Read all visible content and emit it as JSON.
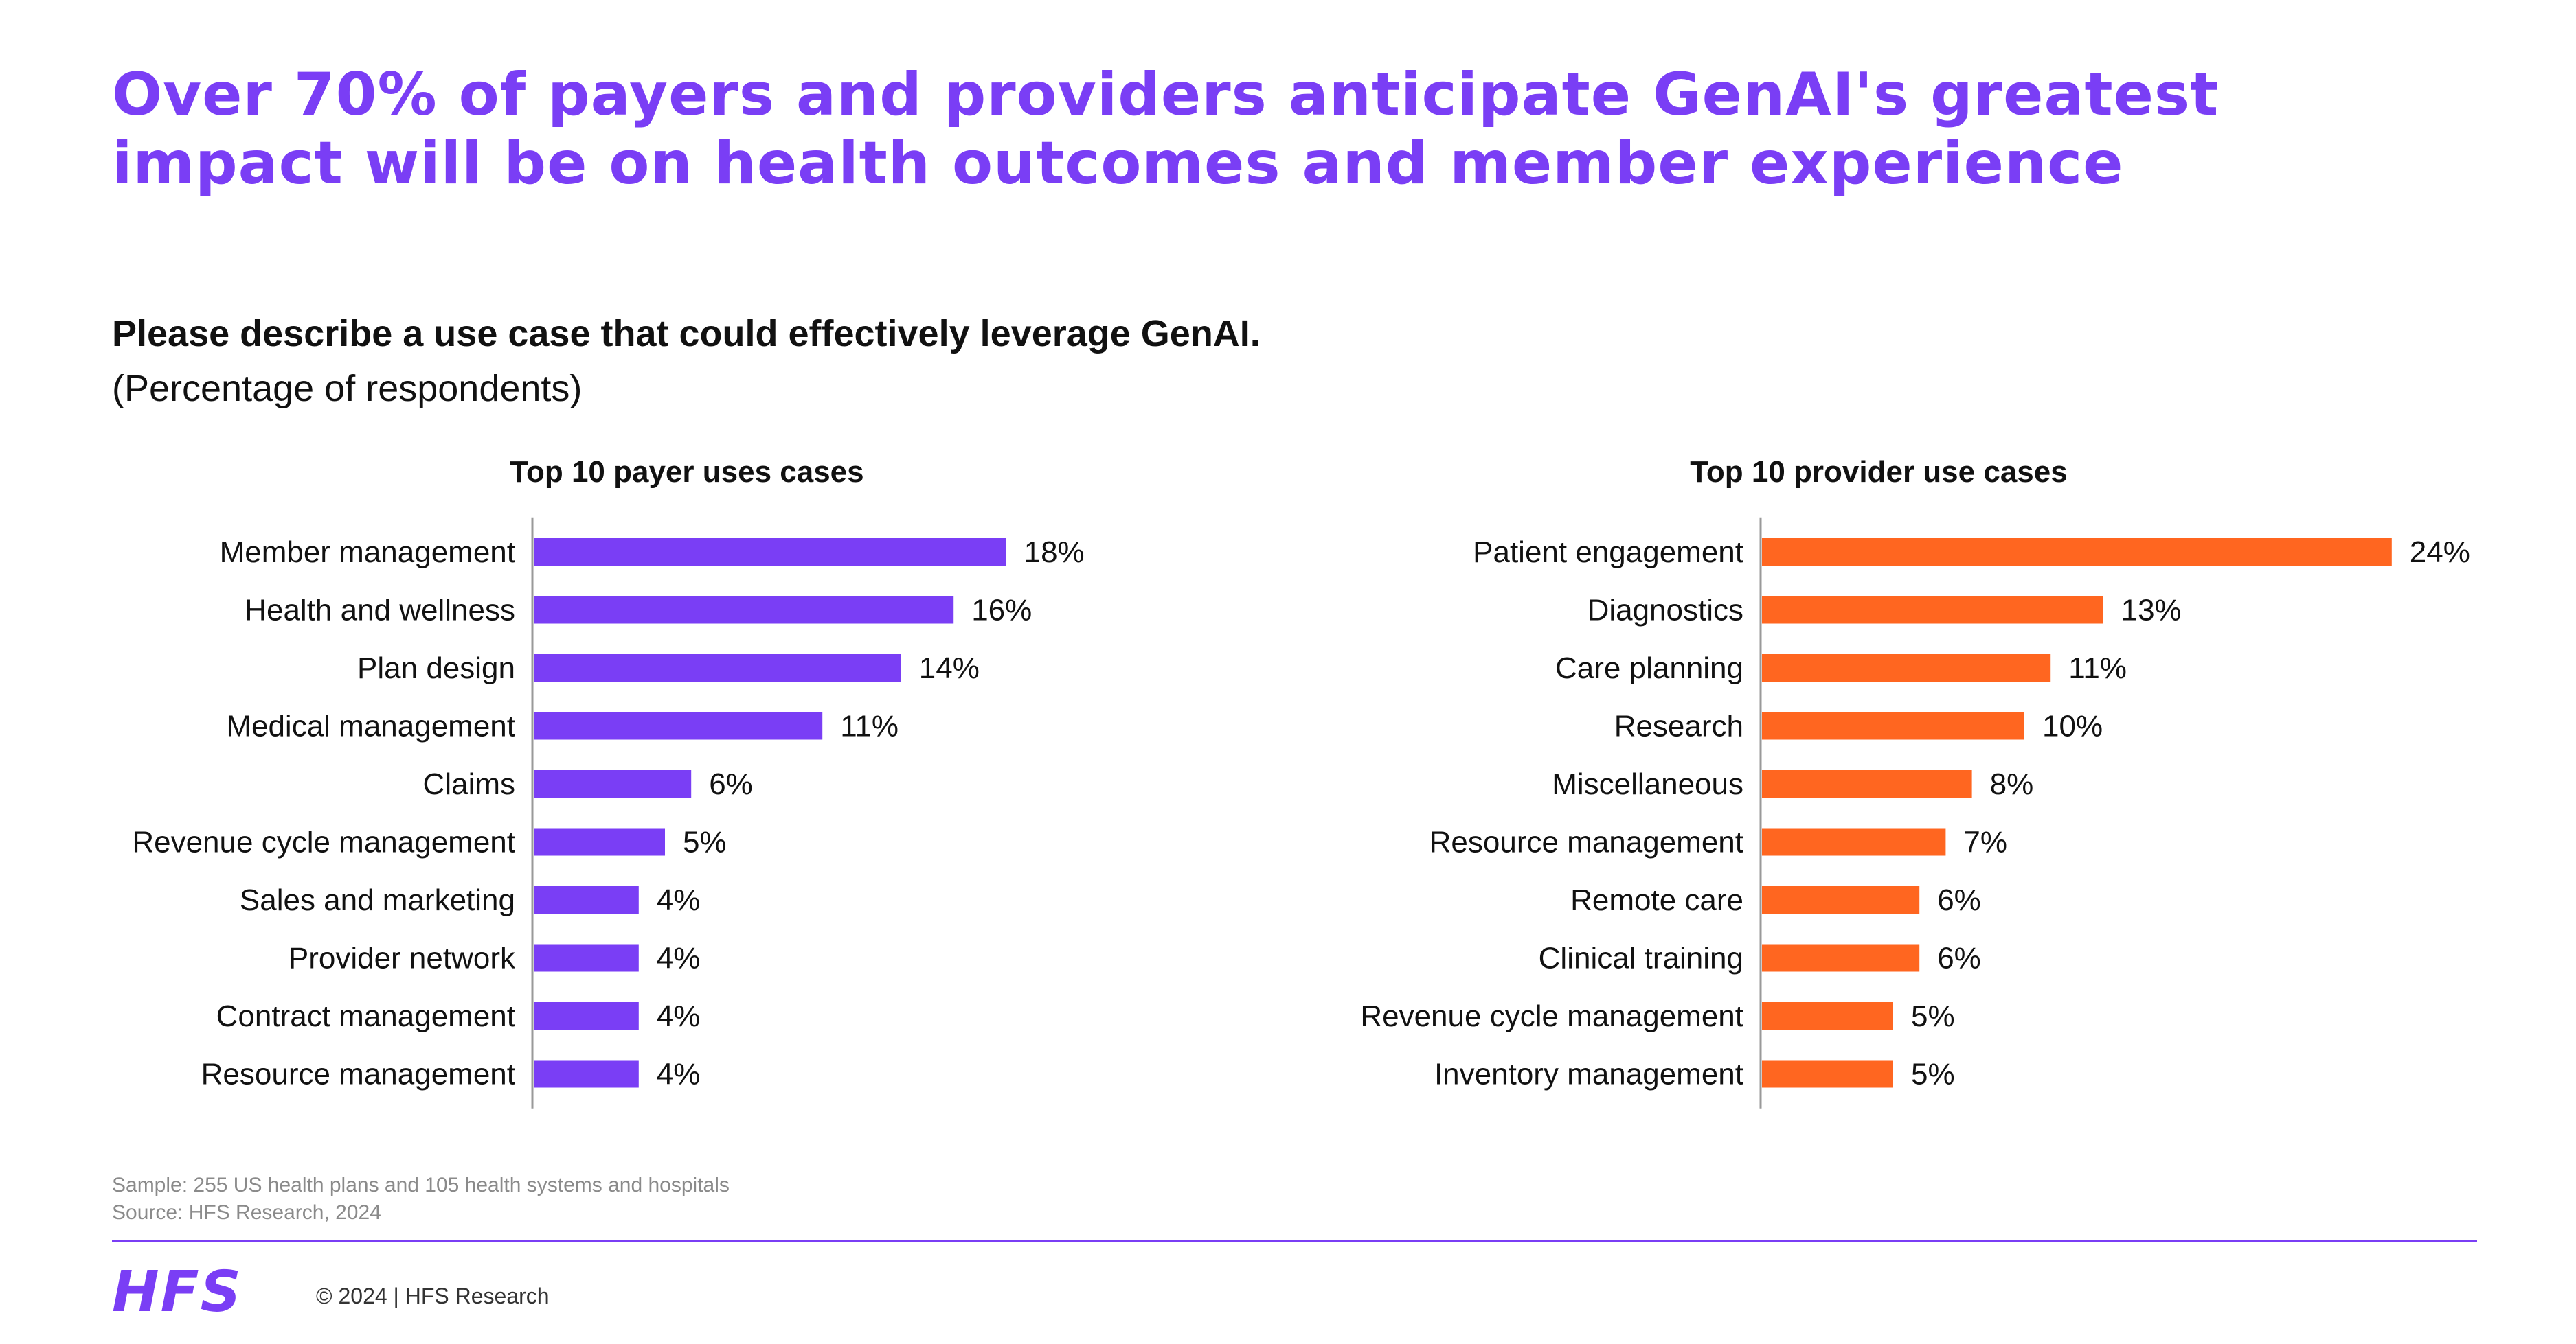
{
  "title": "Over 70% of payers and providers anticipate GenAI's greatest impact will be on health outcomes and member experience",
  "question": "Please describe a use case that could effectively leverage GenAI.",
  "unit_note": "(Percentage of respondents)",
  "footer": {
    "sample": "Sample: 255 US health plans and 105 health systems and hospitals",
    "source": "Source: HFS Research, 2024",
    "logo": "HFS",
    "copyright": "© 2024 | HFS Research"
  },
  "colors": {
    "accent": "#7a3ef5",
    "payer_bar": "#7a3ef5",
    "provider_bar": "#ff6620",
    "axis": "#999999"
  },
  "chart_data": [
    {
      "type": "bar",
      "orientation": "horizontal",
      "title": "Top 10 payer uses cases",
      "categories": [
        "Member management",
        "Health and wellness",
        "Plan design",
        "Medical management",
        "Claims",
        "Revenue cycle management",
        "Sales and marketing",
        "Provider network",
        "Contract management",
        "Resource management"
      ],
      "values": [
        18,
        16,
        14,
        11,
        6,
        5,
        4,
        4,
        4,
        4
      ],
      "value_labels": [
        "18%",
        "16%",
        "14%",
        "11%",
        "6%",
        "5%",
        "4%",
        "4%",
        "4%",
        "4%"
      ],
      "unit": "%",
      "xlim": [
        0,
        24
      ],
      "color": "#7a3ef5"
    },
    {
      "type": "bar",
      "orientation": "horizontal",
      "title": "Top 10 provider use cases",
      "categories": [
        "Patient engagement",
        "Diagnostics",
        "Care planning",
        "Research",
        "Miscellaneous",
        "Resource management",
        "Remote care",
        "Clinical training",
        "Revenue cycle management",
        "Inventory management"
      ],
      "values": [
        24,
        13,
        11,
        10,
        8,
        7,
        6,
        6,
        5,
        5
      ],
      "value_labels": [
        "24%",
        "13%",
        "11%",
        "10%",
        "8%",
        "7%",
        "6%",
        "6%",
        "5%",
        "5%"
      ],
      "unit": "%",
      "xlim": [
        0,
        24
      ],
      "color": "#ff6620"
    }
  ]
}
